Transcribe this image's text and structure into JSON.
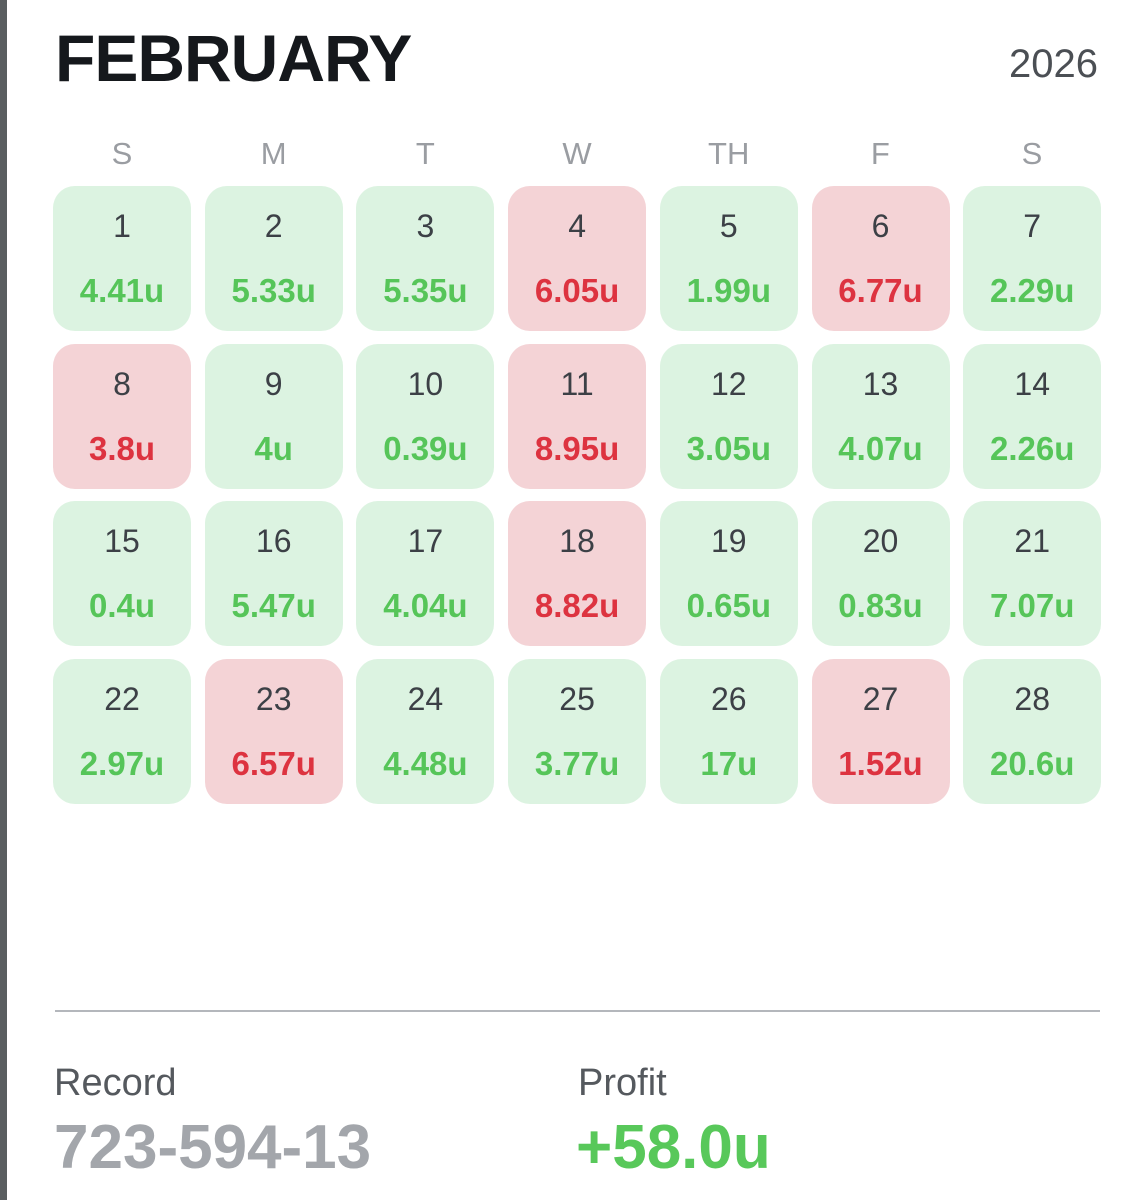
{
  "header": {
    "month": "FEBRUARY",
    "year": "2026"
  },
  "weekdays": [
    "S",
    "M",
    "T",
    "W",
    "TH",
    "F",
    "S"
  ],
  "colors": {
    "win_bg": "#dcf3e1",
    "win_text": "#56c559",
    "loss_bg": "#f4d3d6",
    "loss_text": "#dd3340"
  },
  "days": [
    {
      "day": "1",
      "units": "4.41u",
      "status": "win"
    },
    {
      "day": "2",
      "units": "5.33u",
      "status": "win"
    },
    {
      "day": "3",
      "units": "5.35u",
      "status": "win"
    },
    {
      "day": "4",
      "units": "6.05u",
      "status": "loss"
    },
    {
      "day": "5",
      "units": "1.99u",
      "status": "win"
    },
    {
      "day": "6",
      "units": "6.77u",
      "status": "loss"
    },
    {
      "day": "7",
      "units": "2.29u",
      "status": "win"
    },
    {
      "day": "8",
      "units": "3.8u",
      "status": "loss"
    },
    {
      "day": "9",
      "units": "4u",
      "status": "win"
    },
    {
      "day": "10",
      "units": "0.39u",
      "status": "win"
    },
    {
      "day": "11",
      "units": "8.95u",
      "status": "loss"
    },
    {
      "day": "12",
      "units": "3.05u",
      "status": "win"
    },
    {
      "day": "13",
      "units": "4.07u",
      "status": "win"
    },
    {
      "day": "14",
      "units": "2.26u",
      "status": "win"
    },
    {
      "day": "15",
      "units": "0.4u",
      "status": "win"
    },
    {
      "day": "16",
      "units": "5.47u",
      "status": "win"
    },
    {
      "day": "17",
      "units": "4.04u",
      "status": "win"
    },
    {
      "day": "18",
      "units": "8.82u",
      "status": "loss"
    },
    {
      "day": "19",
      "units": "0.65u",
      "status": "win"
    },
    {
      "day": "20",
      "units": "0.83u",
      "status": "win"
    },
    {
      "day": "21",
      "units": "7.07u",
      "status": "win"
    },
    {
      "day": "22",
      "units": "2.97u",
      "status": "win"
    },
    {
      "day": "23",
      "units": "6.57u",
      "status": "loss"
    },
    {
      "day": "24",
      "units": "4.48u",
      "status": "win"
    },
    {
      "day": "25",
      "units": "3.77u",
      "status": "win"
    },
    {
      "day": "26",
      "units": "17u",
      "status": "win"
    },
    {
      "day": "27",
      "units": "1.52u",
      "status": "loss"
    },
    {
      "day": "28",
      "units": "20.6u",
      "status": "win"
    }
  ],
  "summary": {
    "record_label": "Record",
    "record_value": "723-594-13",
    "profit_label": "Profit",
    "profit_value": "+58.0u"
  }
}
